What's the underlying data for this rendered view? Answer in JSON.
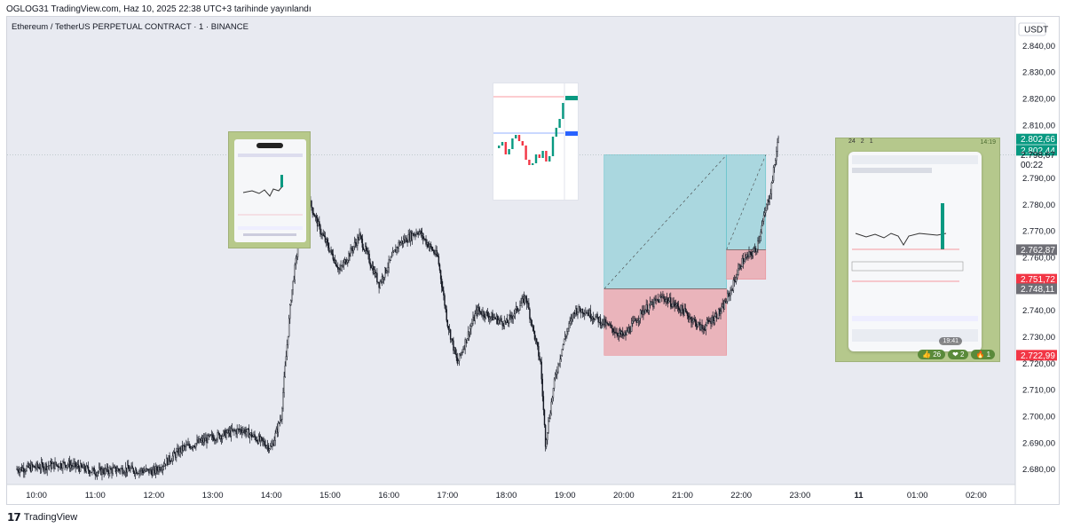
{
  "header": {
    "published": "OGLOG31 TradingView.com, Haz 10, 2025 22:38 UTC+3 tarihinde yayınlandı"
  },
  "symbol": {
    "title": "Ethereum / TetherUS PERPETUAL CONTRACT · 1 · BINANCE"
  },
  "footer": {
    "brand": "TradingView",
    "logo": "TV-logo-icon"
  },
  "thumbnails": {
    "right": {
      "time_top": "14:19",
      "time_bottom": "19:41",
      "reactions_top": [
        "24",
        "2",
        "1"
      ],
      "reactions": [
        {
          "icon": "thumbs-up",
          "count": "26"
        },
        {
          "icon": "heart",
          "count": "2"
        },
        {
          "icon": "fire",
          "count": "1"
        }
      ]
    }
  },
  "colors": {
    "background": "#e8eaf1",
    "candle": "#131722",
    "profit_zone": "#5fc2c9",
    "loss_zone": "#eb8f97",
    "price_green": "#089981",
    "price_red": "#f23645",
    "price_grey": "#6f6f76"
  },
  "chart_data": {
    "type": "candlestick",
    "y_unit": "USDT",
    "ylim": [
      2675,
      2850
    ],
    "x_ticks": [
      "10:00",
      "11:00",
      "12:00",
      "13:00",
      "14:00",
      "15:00",
      "16:00",
      "17:00",
      "18:00",
      "19:00",
      "20:00",
      "21:00",
      "22:00",
      "23:00",
      "11",
      "01:00",
      "02:00"
    ],
    "y_ticks": [
      "2.680,00",
      "2.690,00",
      "2.700,00",
      "2.710,00",
      "2.720,00",
      "2.730,00",
      "2.740,00",
      "2.750,00",
      "2.760,00",
      "2.770,00",
      "2.780,00",
      "2.790,00",
      "2.800,00",
      "2.810,00",
      "2.820,00",
      "2.830,00",
      "2.840,00"
    ],
    "price_path": [
      [
        "09:40",
        2680
      ],
      [
        "10:30",
        2682
      ],
      [
        "11:00",
        2679
      ],
      [
        "11:30",
        2680
      ],
      [
        "12:00",
        2679
      ],
      [
        "12:30",
        2688
      ],
      [
        "13:00",
        2692
      ],
      [
        "13:30",
        2695
      ],
      [
        "14:00",
        2688
      ],
      [
        "14:10",
        2700
      ],
      [
        "14:20",
        2745
      ],
      [
        "14:35",
        2785
      ],
      [
        "14:50",
        2770
      ],
      [
        "15:10",
        2755
      ],
      [
        "15:30",
        2768
      ],
      [
        "15:50",
        2750
      ],
      [
        "16:10",
        2765
      ],
      [
        "16:30",
        2770
      ],
      [
        "16:50",
        2760
      ],
      [
        "17:00",
        2735
      ],
      [
        "17:10",
        2720
      ],
      [
        "17:30",
        2740
      ],
      [
        "18:00",
        2735
      ],
      [
        "18:20",
        2745
      ],
      [
        "18:35",
        2720
      ],
      [
        "18:40",
        2690
      ],
      [
        "18:50",
        2715
      ],
      [
        "19:00",
        2730
      ],
      [
        "19:10",
        2740
      ],
      [
        "19:20",
        2740
      ],
      [
        "19:40",
        2735
      ],
      [
        "20:00",
        2730
      ],
      [
        "20:20",
        2740
      ],
      [
        "20:40",
        2745
      ],
      [
        "21:00",
        2740
      ],
      [
        "21:20",
        2733
      ],
      [
        "21:40",
        2740
      ],
      [
        "21:50",
        2748
      ],
      [
        "22:00",
        2758
      ],
      [
        "22:15",
        2763
      ],
      [
        "22:30",
        2785
      ],
      [
        "22:38",
        2805
      ]
    ],
    "price_labels": [
      {
        "text": "USDT",
        "kind": "unit"
      },
      {
        "text": "2.802,66",
        "kind": "green"
      },
      {
        "text": "2.802,44",
        "kind": "green"
      },
      {
        "text": "2.798,67",
        "kind": "plain"
      },
      {
        "text": "00:22",
        "kind": "plain"
      },
      {
        "text": "2.762,87",
        "kind": "grey"
      },
      {
        "text": "2.751,72",
        "kind": "red"
      },
      {
        "text": "2.748,11",
        "kind": "grey"
      },
      {
        "text": "2.722,99",
        "kind": "red"
      }
    ],
    "positions": [
      {
        "start": "19:40",
        "end": "21:45",
        "entry": 2748.11,
        "target": 2798.67,
        "stop": 2722.99
      },
      {
        "start": "21:45",
        "end": "22:25",
        "entry": 2762.87,
        "target": 2798.67,
        "stop": 2751.72
      }
    ]
  }
}
